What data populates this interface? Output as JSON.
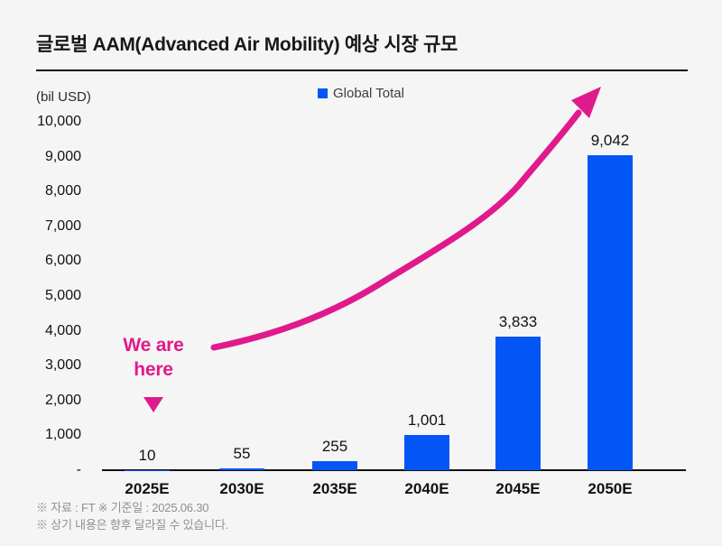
{
  "page": {
    "background_color": "#f5f5f5",
    "accent_pink": "#e01a8c",
    "bar_blue": "#0356f5"
  },
  "header": {
    "title": "글로벌 AAM(Advanced Air Mobility) 예상 시장 규모"
  },
  "legend": {
    "label": "Global Total",
    "swatch_color": "#0356f5"
  },
  "annotation": {
    "line1": "We are",
    "line2": "here",
    "color": "#e01a8c"
  },
  "chart_data": {
    "type": "bar",
    "title": "글로벌 AAM(Advanced Air Mobility) 예상 시장 규모",
    "unit_label": "(bil USD)",
    "series": [
      {
        "name": "Global Total",
        "values": [
          10,
          55,
          255,
          1001,
          3833,
          9042
        ]
      }
    ],
    "categories": [
      "2025E",
      "2030E",
      "2035E",
      "2040E",
      "2045E",
      "2050E"
    ],
    "values": [
      10,
      55,
      255,
      1001,
      3833,
      9042
    ],
    "value_labels": [
      "10",
      "55",
      "255",
      "1,001",
      "3,833",
      "9,042"
    ],
    "ylim": [
      0,
      10000
    ],
    "xlabel": "",
    "ylabel": "(bil USD)",
    "grid": false,
    "legend_position": "top-center",
    "bar_color": "#0356f5",
    "y_ticks": [
      {
        "label": "10,000",
        "value": 10000
      },
      {
        "label": "9,000",
        "value": 9000
      },
      {
        "label": "8,000",
        "value": 8000
      },
      {
        "label": "7,000",
        "value": 7000
      },
      {
        "label": "6,000",
        "value": 6000
      },
      {
        "label": "5,000",
        "value": 5000
      },
      {
        "label": "4,000",
        "value": 4000
      },
      {
        "label": "3,000",
        "value": 3000
      },
      {
        "label": "2,000",
        "value": 2000
      },
      {
        "label": "1,000",
        "value": 1000
      },
      {
        "label": "-",
        "value": 0
      }
    ],
    "trend_annotation": {
      "text": "We are here",
      "style": "pink exponential arrow from 2025E to top right"
    }
  },
  "footer": {
    "line1": "※ 자료 : FT ※ 기준일 : 2025.06.30",
    "line2": "※ 상기 내용은 향후 달라질 수 있습니다."
  }
}
